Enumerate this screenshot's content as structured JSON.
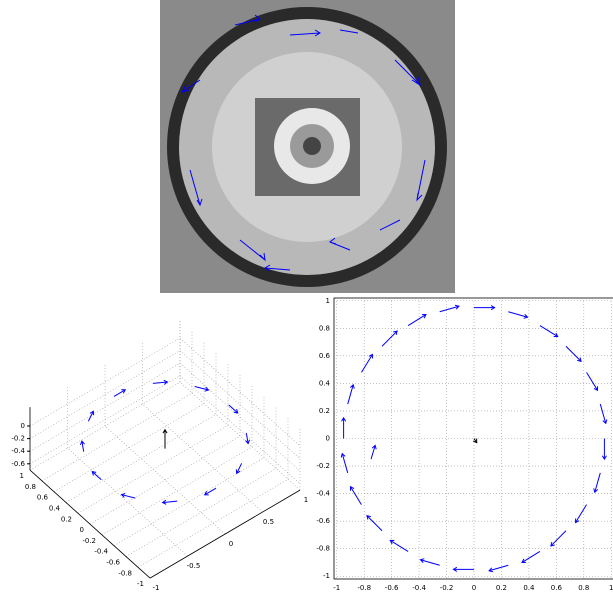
{
  "chart_data": [
    {
      "type": "quiver3d",
      "xlim": [
        -1,
        1
      ],
      "xticks": [
        -1,
        -0.5,
        0,
        0.5,
        1
      ],
      "ylim": [
        -1,
        1
      ],
      "yticks": [
        -1,
        -0.8,
        -0.6,
        -0.4,
        -0.2,
        0,
        0.2,
        0.4,
        0.6,
        0.8,
        1
      ],
      "zlim": [
        -0.7,
        0.3
      ],
      "zticks": [
        -0.6,
        -0.4,
        -0.2,
        0
      ],
      "grid": true,
      "series": [
        {
          "color": "#0000ff",
          "x": [
            0.85,
            0.74,
            0.43,
            0,
            -0.43,
            -0.74,
            -0.85,
            -0.74,
            -0.43,
            0,
            0.43,
            0.74
          ],
          "y": [
            0,
            0.43,
            0.74,
            0.85,
            0.74,
            0.43,
            0,
            -0.43,
            -0.74,
            -0.85,
            -0.74,
            -0.43
          ],
          "z": [
            -0.1,
            -0.1,
            -0.1,
            -0.1,
            -0.1,
            -0.1,
            -0.1,
            -0.1,
            -0.1,
            -0.1,
            -0.1,
            -0.1
          ],
          "u": [
            0,
            0.08,
            0.13,
            0.15,
            0.13,
            0.08,
            0,
            -0.08,
            -0.13,
            -0.15,
            -0.13,
            -0.08
          ],
          "v": [
            -0.15,
            -0.13,
            -0.08,
            0,
            0.08,
            0.13,
            0.15,
            0.13,
            0.08,
            0,
            -0.08,
            -0.13
          ],
          "w": [
            0,
            0,
            0,
            0,
            0,
            0,
            0,
            0,
            0,
            0,
            0,
            0
          ]
        },
        {
          "color": "#000000",
          "x": [
            0
          ],
          "y": [
            0
          ],
          "z": [
            -0.2
          ],
          "u": [
            0
          ],
          "v": [
            0
          ],
          "w": [
            0.3
          ]
        }
      ]
    },
    {
      "type": "quiver",
      "xlim": [
        -1.02,
        1.02
      ],
      "xticks": [
        -1,
        -0.8,
        -0.6,
        -0.4,
        -0.2,
        0,
        0.2,
        0.4,
        0.6,
        0.8,
        1
      ],
      "ylim": [
        -1.02,
        1.02
      ],
      "yticks": [
        -1,
        -0.8,
        -0.6,
        -0.4,
        -0.2,
        0,
        0.2,
        0.4,
        0.6,
        0.8,
        1
      ],
      "grid": true,
      "series": [
        {
          "color": "#0000ff",
          "x": [
            0.95,
            0.92,
            0.82,
            0.67,
            0.48,
            0.25,
            0,
            -0.25,
            -0.48,
            -0.67,
            -0.82,
            -0.92,
            -0.95,
            -0.92,
            -0.82,
            -0.67,
            -0.48,
            -0.25,
            0,
            0.25,
            0.48,
            0.67,
            0.82,
            0.92,
            -0.75
          ],
          "y": [
            0,
            0.25,
            0.48,
            0.67,
            0.82,
            0.92,
            0.95,
            0.92,
            0.82,
            0.67,
            0.48,
            0.25,
            0,
            -0.25,
            -0.48,
            -0.67,
            -0.82,
            -0.92,
            -0.95,
            -0.92,
            -0.82,
            -0.67,
            -0.48,
            -0.25,
            -0.15
          ],
          "u": [
            0,
            0.04,
            0.08,
            0.11,
            0.13,
            0.14,
            0.15,
            0.14,
            0.13,
            0.11,
            0.08,
            0.04,
            0,
            -0.04,
            -0.08,
            -0.11,
            -0.13,
            -0.14,
            -0.15,
            -0.14,
            -0.13,
            -0.11,
            -0.08,
            -0.04,
            0.03
          ],
          "v": [
            -0.15,
            -0.14,
            -0.13,
            -0.11,
            -0.08,
            -0.04,
            0,
            0.04,
            0.08,
            0.11,
            0.13,
            0.14,
            0.15,
            0.14,
            0.13,
            0.11,
            0.08,
            0.04,
            0,
            -0.04,
            -0.08,
            -0.11,
            -0.13,
            -0.14,
            0.1
          ]
        },
        {
          "color": "#000000",
          "x": [
            0
          ],
          "y": [
            0
          ],
          "u": [
            0.02
          ],
          "v": [
            -0.03
          ]
        }
      ]
    }
  ]
}
